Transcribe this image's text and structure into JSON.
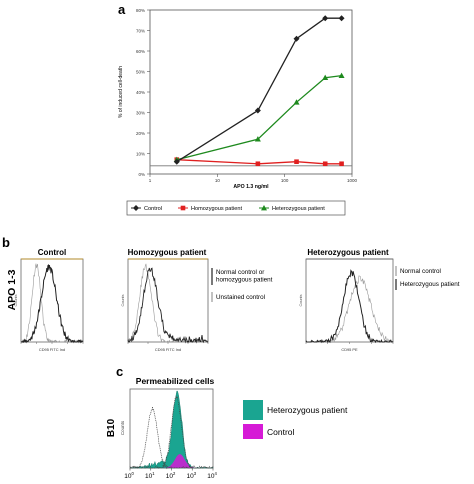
{
  "panels": {
    "a": {
      "letter": "a",
      "ytick_labels": [
        "0%",
        "10%",
        "20%",
        "30%",
        "40%",
        "50%",
        "60%",
        "70%",
        "80%"
      ],
      "xtick_labels": [
        "1",
        "10",
        "100",
        "1000"
      ],
      "legend": [
        "Control",
        "Homozygous patient",
        "Heterozygous patient"
      ]
    },
    "b": {
      "letter": "b",
      "ylabel": "APO 1-3",
      "titles": [
        "Control",
        "Homozygous patient",
        "Heterozygous patient"
      ],
      "hist_ylabel": "Counts",
      "xlabels": [
        "CD95 FITC Ind",
        "CD95 FITC Ind",
        "CD95 PE"
      ],
      "legend_left": [
        "Normal control or homozygous patient",
        "Unstained control"
      ],
      "legend_right": [
        "Normal control",
        "Heterozygous patient"
      ]
    },
    "c": {
      "letter": "c",
      "title": "Permeabilized cells",
      "ylabel": "B10",
      "hist_ylabel": "Counts",
      "xtick_bases": [
        "10",
        "10",
        "10",
        "10",
        "10"
      ],
      "xtick_exps": [
        "0",
        "1",
        "2",
        "3",
        "4"
      ],
      "legend": [
        "Heterozygous patient",
        "Control"
      ]
    }
  },
  "colors": {
    "control": "#222222",
    "homozygous": "#e02020",
    "heterozygous": "#1e8a1e",
    "teal_fill": "#1aa591",
    "magenta": "#d61ad6",
    "hist_dark": "#222222",
    "hist_gray": "#999999"
  },
  "chart_data": [
    {
      "type": "line",
      "panel": "a",
      "ylabel": "% of induced cell-death",
      "xlabel": "APO 1.3 ng/ml",
      "x_scale": "log",
      "xlim": [
        1,
        1000
      ],
      "ylim": [
        0,
        0.8
      ],
      "y_ticks": [
        0,
        0.1,
        0.2,
        0.3,
        0.4,
        0.5,
        0.6,
        0.7,
        0.8
      ],
      "series": [
        {
          "name": "Control",
          "marker": "diamond",
          "color": "#222222",
          "x": [
            2.5,
            40,
            150,
            400,
            700
          ],
          "y": [
            0.06,
            0.31,
            0.66,
            0.76,
            0.76
          ]
        },
        {
          "name": "Homozygous patient",
          "marker": "square",
          "color": "#e02020",
          "x": [
            2.5,
            40,
            150,
            400,
            700
          ],
          "y": [
            0.07,
            0.05,
            0.06,
            0.05,
            0.05
          ]
        },
        {
          "name": "Heterozygous patient",
          "marker": "triangle",
          "color": "#1e8a1e",
          "x": [
            2.5,
            40,
            150,
            400,
            700
          ],
          "y": [
            0.07,
            0.17,
            0.35,
            0.47,
            0.48
          ]
        }
      ],
      "reference_line_y": 0.04,
      "legend_position": "bottom"
    }
  ]
}
